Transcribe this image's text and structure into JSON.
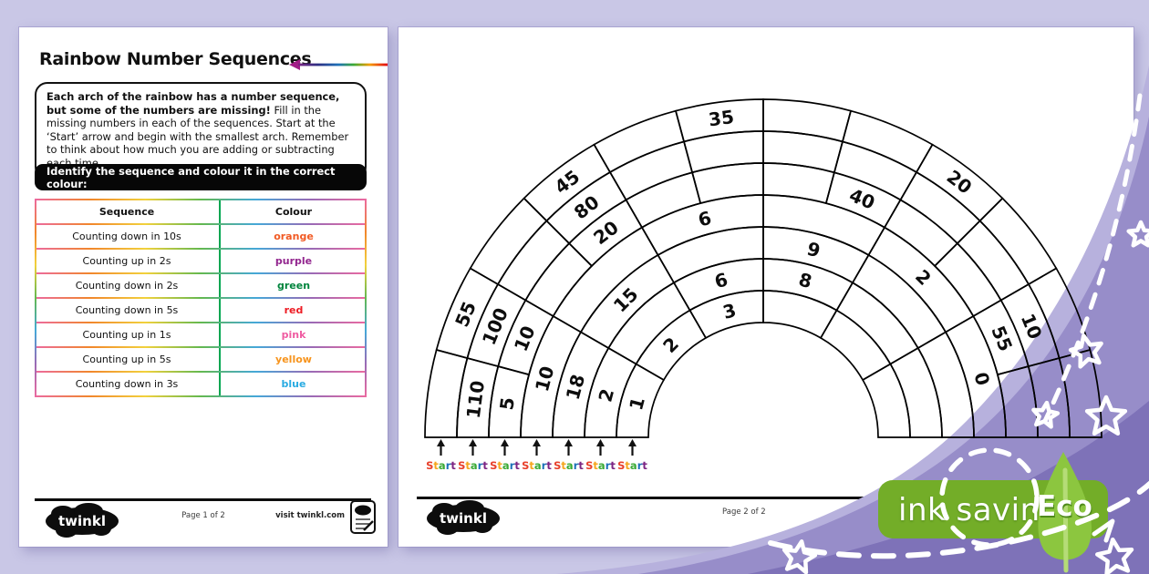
{
  "page1": {
    "title": "Rainbow Number Sequences",
    "instructions": {
      "bold": "Each arch of the rainbow has a number sequence, but some of the numbers are missing!",
      "rest": " Fill in the missing numbers in each of the sequences. Start at the ‘Start’ arrow and begin with the smallest arch. Remember to think about how much you are adding or subtracting each time."
    },
    "banner": "Identify the sequence and colour it in the correct colour:",
    "table": {
      "headers": [
        "Sequence",
        "Colour"
      ],
      "rows": [
        {
          "sequence": "Counting down in 10s",
          "colour": "orange",
          "hex": "#f15a24"
        },
        {
          "sequence": "Counting up in 2s",
          "colour": "purple",
          "hex": "#93278f"
        },
        {
          "sequence": "Counting down in 2s",
          "colour": "green",
          "hex": "#00843d"
        },
        {
          "sequence": "Counting down in 5s",
          "colour": "red",
          "hex": "#ed1c24"
        },
        {
          "sequence": "Counting up in 1s",
          "colour": "pink",
          "hex": "#ef5ba1"
        },
        {
          "sequence": "Counting up in 5s",
          "colour": "yellow",
          "hex": "#f7941d"
        },
        {
          "sequence": "Counting down in 3s",
          "colour": "blue",
          "hex": "#29abe2"
        }
      ]
    },
    "footer": {
      "logo": "twinkl",
      "page": "Page 1 of 2",
      "visit": "visit twinkl.com"
    }
  },
  "page2": {
    "rainbow": {
      "arches": [
        {
          "cells": [
            "",
            "55",
            "",
            "45",
            "",
            "35",
            "",
            "",
            "20",
            "",
            "",
            ""
          ]
        },
        {
          "cells": [
            "110",
            "100",
            "",
            "80",
            "",
            "",
            "",
            "",
            "",
            "",
            "10",
            ""
          ]
        },
        {
          "cells": [
            "5",
            "10",
            "",
            "20",
            "",
            "",
            "",
            "40",
            "",
            "",
            "55",
            ""
          ]
        },
        {
          "cells": [
            "10",
            "",
            "6",
            "",
            "2",
            "0"
          ]
        },
        {
          "cells": [
            "18",
            "15",
            "",
            "9",
            "",
            ""
          ]
        },
        {
          "cells": [
            "2",
            "",
            "6",
            "8",
            "",
            ""
          ]
        },
        {
          "cells": [
            "1",
            "2",
            "3",
            "",
            "",
            ""
          ]
        }
      ],
      "start_label": "Start",
      "start_count": 7,
      "start_letter_colors": [
        "#e8412c",
        "#f5a61d",
        "#3aaa35",
        "#1d71b8",
        "#7c2483"
      ]
    },
    "footer": {
      "logo": "twinkl",
      "page": "Page 2 of 2"
    }
  },
  "badge": {
    "ink_saving": "ink saving",
    "eco": "Eco"
  },
  "colors": {
    "background": "#c9c7e6",
    "swoosh_light": "#b7b1dd",
    "swoosh_medium": "#978dc9",
    "swoosh_dark": "#7e72b8",
    "badge_green": "#73ad28",
    "leaf_green": "#8cc63f",
    "table_divider_green": "#00a651"
  }
}
